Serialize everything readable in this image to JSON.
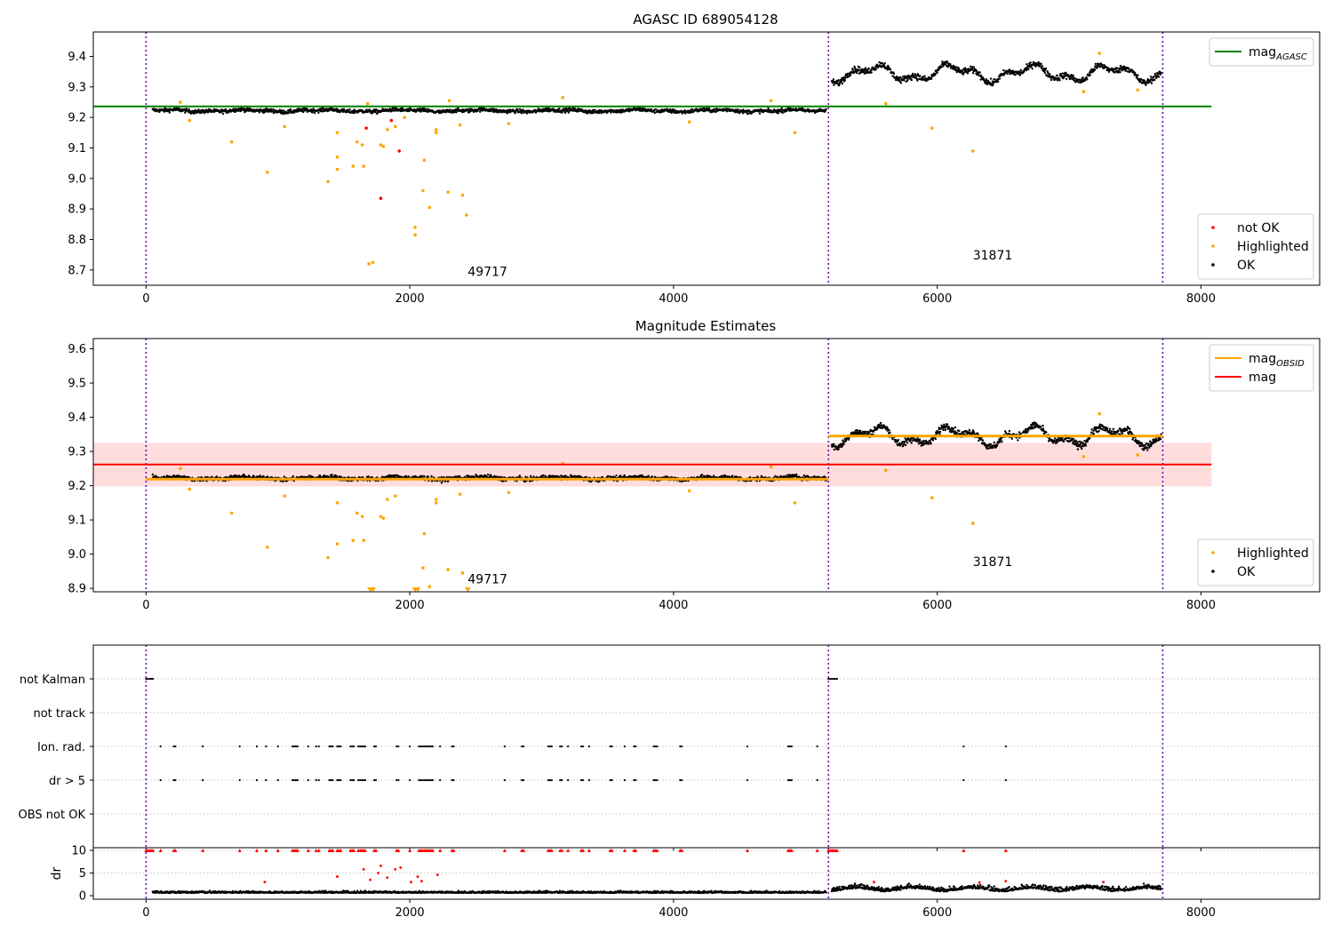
{
  "chart_data": [
    {
      "type": "scatter",
      "title": "AGASC ID 689054128",
      "xlim": [
        -400,
        8900
      ],
      "ylim": [
        8.65,
        9.48
      ],
      "x_ticks": [
        0,
        2000,
        4000,
        6000,
        8000
      ],
      "y_ticks": [
        8.7,
        8.8,
        8.9,
        9.0,
        9.1,
        9.2,
        9.3,
        9.4
      ],
      "vlines": [
        0,
        5175,
        7710
      ],
      "hlines": [
        {
          "name": "mag_AGASC",
          "y": 9.236,
          "x_start": -400,
          "x_end": 8080,
          "color": "#008000"
        }
      ],
      "annotations": [
        {
          "text": "49717",
          "x": 2590,
          "y": 8.68
        },
        {
          "text": "31871",
          "x": 6420,
          "y": 8.735
        }
      ],
      "segments": [
        {
          "x_start": 50,
          "x_end": 5160,
          "y_mean": 9.222,
          "noise": 0.006,
          "wave": 0.004
        },
        {
          "x_start": 5200,
          "x_end": 7700,
          "y_mean": 9.345,
          "noise": 0.01,
          "wave": 0.03
        }
      ],
      "highlighted": [
        [
          650,
          9.12
        ],
        [
          920,
          9.02
        ],
        [
          1050,
          9.17
        ],
        [
          1380,
          8.99
        ],
        [
          1450,
          9.07
        ],
        [
          1450,
          9.03
        ],
        [
          1450,
          9.15
        ],
        [
          1570,
          9.04
        ],
        [
          1600,
          9.12
        ],
        [
          1640,
          9.11
        ],
        [
          1650,
          9.04
        ],
        [
          1690,
          8.72
        ],
        [
          1720,
          8.725
        ],
        [
          1780,
          9.11
        ],
        [
          1800,
          9.105
        ],
        [
          1830,
          9.16
        ],
        [
          1890,
          9.17
        ],
        [
          1960,
          9.2
        ],
        [
          2040,
          8.84
        ],
        [
          2040,
          8.815
        ],
        [
          2100,
          8.96
        ],
        [
          2110,
          9.06
        ],
        [
          2150,
          8.905
        ],
        [
          2200,
          9.15
        ],
        [
          2200,
          9.16
        ],
        [
          2290,
          8.955
        ],
        [
          2380,
          9.175
        ],
        [
          2400,
          8.945
        ],
        [
          2430,
          8.88
        ],
        [
          2750,
          9.18
        ],
        [
          3160,
          9.265
        ],
        [
          4120,
          9.185
        ],
        [
          4920,
          9.15
        ],
        [
          5610,
          9.245
        ],
        [
          5960,
          9.165
        ],
        [
          6270,
          9.09
        ],
        [
          7110,
          9.285
        ],
        [
          7230,
          9.41
        ],
        [
          7520,
          9.29
        ],
        [
          260,
          9.25
        ],
        [
          330,
          9.19
        ],
        [
          1680,
          9.245
        ],
        [
          2300,
          9.255
        ],
        [
          4740,
          9.255
        ]
      ],
      "not_ok": [
        [
          1670,
          9.165
        ],
        [
          1780,
          8.935
        ],
        [
          1920,
          9.09
        ],
        [
          1860,
          9.19
        ]
      ],
      "legends": [
        {
          "position": "upper-right",
          "entries": [
            {
              "label": "mag",
              "sub": "AGASC",
              "kind": "line",
              "color": "#008000"
            }
          ]
        },
        {
          "position": "lower-right",
          "entries": [
            {
              "label": "not OK",
              "kind": "dot",
              "color": "#ff0000"
            },
            {
              "label": "Highlighted",
              "kind": "dot",
              "color": "#ffa500"
            },
            {
              "label": "OK",
              "kind": "dot",
              "color": "#000000"
            }
          ]
        }
      ]
    },
    {
      "type": "scatter",
      "title": "Magnitude Estimates",
      "xlim": [
        -400,
        8900
      ],
      "ylim": [
        8.89,
        9.63
      ],
      "x_ticks": [
        0,
        2000,
        4000,
        6000,
        8000
      ],
      "y_ticks": [
        8.9,
        9.0,
        9.1,
        9.2,
        9.3,
        9.4,
        9.5,
        9.6
      ],
      "vlines": [
        0,
        5175,
        7710
      ],
      "band": {
        "y_low": 9.198,
        "y_high": 9.325,
        "x_start": -400,
        "x_end": 8080,
        "color": "#ffdddd"
      },
      "hlines": [
        {
          "name": "mag",
          "y": 9.262,
          "x_start": -400,
          "x_end": 8080,
          "color": "#ff0000"
        }
      ],
      "obsid_lines": [
        {
          "x_start": 0,
          "x_end": 5175,
          "y": 9.219
        },
        {
          "x_start": 5175,
          "x_end": 7710,
          "y": 9.345
        }
      ],
      "annotations": [
        {
          "text": "49717",
          "x": 2590,
          "y": 8.915
        },
        {
          "text": "31871",
          "x": 6420,
          "y": 8.965
        }
      ],
      "segments": [
        {
          "x_start": 50,
          "x_end": 5160,
          "y_mean": 9.222,
          "noise": 0.006,
          "wave": 0.004
        },
        {
          "x_start": 5200,
          "x_end": 7700,
          "y_mean": 9.345,
          "noise": 0.01,
          "wave": 0.03
        }
      ],
      "highlighted": [
        [
          650,
          9.12
        ],
        [
          920,
          9.02
        ],
        [
          1050,
          9.17
        ],
        [
          1380,
          8.99
        ],
        [
          1450,
          9.03
        ],
        [
          1450,
          9.15
        ],
        [
          1570,
          9.04
        ],
        [
          1600,
          9.12
        ],
        [
          1640,
          9.11
        ],
        [
          1650,
          9.04
        ],
        [
          1780,
          9.11
        ],
        [
          1800,
          9.105
        ],
        [
          1830,
          9.16
        ],
        [
          1890,
          9.17
        ],
        [
          2100,
          8.96
        ],
        [
          2110,
          9.06
        ],
        [
          2150,
          8.905
        ],
        [
          2200,
          9.15
        ],
        [
          2200,
          9.16
        ],
        [
          2290,
          8.955
        ],
        [
          2380,
          9.175
        ],
        [
          2400,
          8.945
        ],
        [
          2750,
          9.18
        ],
        [
          3160,
          9.265
        ],
        [
          4120,
          9.185
        ],
        [
          4920,
          9.15
        ],
        [
          5610,
          9.245
        ],
        [
          5960,
          9.165
        ],
        [
          6270,
          9.09
        ],
        [
          7110,
          9.285
        ],
        [
          7230,
          9.41
        ],
        [
          7520,
          9.29
        ],
        [
          260,
          9.25
        ],
        [
          330,
          9.19
        ],
        [
          4740,
          9.255
        ]
      ],
      "clipped_low": [
        1700,
        1720,
        2040,
        2060,
        2440
      ],
      "legends": [
        {
          "position": "upper-right",
          "entries": [
            {
              "label": "mag",
              "sub": "OBSID",
              "kind": "line",
              "color": "#ffa500"
            },
            {
              "label": "mag",
              "sub": "",
              "kind": "line",
              "color": "#ff0000"
            }
          ]
        },
        {
          "position": "lower-right",
          "entries": [
            {
              "label": "Highlighted",
              "kind": "dot",
              "color": "#ffa500"
            },
            {
              "label": "OK",
              "kind": "dot",
              "color": "#000000"
            }
          ]
        }
      ]
    },
    {
      "type": "scatter",
      "title": "",
      "xlim": [
        -400,
        8900
      ],
      "categories": [
        "not Kalman",
        "not track",
        "Ion. rad.",
        "dr > 5",
        "OBS not OK"
      ],
      "vlines": [
        0,
        5175,
        7710
      ],
      "flag_runs": {
        "not Kalman": [
          [
            0,
            60
          ],
          [
            5175,
            5250
          ]
        ],
        "not track": [],
        "Ion. rad.": [
          [
            110,
            110
          ],
          [
            210,
            230
          ],
          [
            430,
            430
          ],
          [
            710,
            720
          ],
          [
            840,
            850
          ],
          [
            910,
            920
          ],
          [
            1000,
            1010
          ],
          [
            1110,
            1150
          ],
          [
            1230,
            1240
          ],
          [
            1290,
            1300
          ],
          [
            1310,
            1320
          ],
          [
            1390,
            1420
          ],
          [
            1450,
            1480
          ],
          [
            1550,
            1580
          ],
          [
            1610,
            1670
          ],
          [
            1730,
            1750
          ],
          [
            1900,
            1920
          ],
          [
            2000,
            2010
          ],
          [
            2070,
            2180
          ],
          [
            2230,
            2240
          ],
          [
            2320,
            2340
          ],
          [
            2720,
            2730
          ],
          [
            2850,
            2870
          ],
          [
            3050,
            3080
          ],
          [
            3140,
            3160
          ],
          [
            3200,
            3210
          ],
          [
            3300,
            3320
          ],
          [
            3360,
            3370
          ],
          [
            3520,
            3540
          ],
          [
            3630,
            3640
          ],
          [
            3700,
            3720
          ],
          [
            3850,
            3880
          ],
          [
            4050,
            4070
          ],
          [
            4560,
            4560
          ],
          [
            4870,
            4900
          ],
          [
            5090,
            5100
          ],
          [
            6200,
            6200
          ],
          [
            6520,
            6520
          ]
        ],
        "dr > 5": [
          [
            110,
            110
          ],
          [
            210,
            230
          ],
          [
            430,
            430
          ],
          [
            710,
            720
          ],
          [
            840,
            850
          ],
          [
            910,
            920
          ],
          [
            1000,
            1010
          ],
          [
            1110,
            1150
          ],
          [
            1230,
            1240
          ],
          [
            1290,
            1300
          ],
          [
            1310,
            1320
          ],
          [
            1390,
            1420
          ],
          [
            1450,
            1480
          ],
          [
            1550,
            1580
          ],
          [
            1610,
            1670
          ],
          [
            1730,
            1750
          ],
          [
            1900,
            1920
          ],
          [
            2000,
            2010
          ],
          [
            2070,
            2180
          ],
          [
            2230,
            2240
          ],
          [
            2320,
            2340
          ],
          [
            2720,
            2730
          ],
          [
            2850,
            2870
          ],
          [
            3050,
            3080
          ],
          [
            3140,
            3160
          ],
          [
            3200,
            3210
          ],
          [
            3300,
            3320
          ],
          [
            3360,
            3370
          ],
          [
            3520,
            3540
          ],
          [
            3630,
            3640
          ],
          [
            3700,
            3720
          ],
          [
            3850,
            3880
          ],
          [
            4050,
            4070
          ],
          [
            4560,
            4560
          ],
          [
            4870,
            4900
          ],
          [
            5090,
            5100
          ],
          [
            6200,
            6200
          ],
          [
            6520,
            6520
          ]
        ],
        "OBS not OK": []
      }
    },
    {
      "type": "scatter",
      "title": "",
      "ylabel": "dr",
      "xlim": [
        -400,
        8900
      ],
      "ylim": [
        -0.5,
        10.5
      ],
      "x_ticks": [
        0,
        2000,
        4000,
        6000,
        8000
      ],
      "x_tick_labels": [
        "0",
        "2000",
        "4000",
        "6000",
        "8000"
      ],
      "y_ticks": [
        0,
        5,
        10
      ],
      "y_tick_labels": [
        "0",
        "5",
        "10"
      ],
      "vlines": [
        0,
        5175,
        7710
      ],
      "segments": [
        {
          "x_start": 50,
          "x_end": 5160,
          "y_mean": 0.7,
          "noise": 0.25
        },
        {
          "x_start": 5200,
          "x_end": 7700,
          "y_mean": 1.5,
          "noise": 0.6
        }
      ],
      "capped_at": 10,
      "outliers": [
        [
          900,
          3.0
        ],
        [
          1450,
          4.2
        ],
        [
          1650,
          5.8
        ],
        [
          1700,
          3.5
        ],
        [
          1760,
          5.0
        ],
        [
          1780,
          6.6
        ],
        [
          1830,
          4.0
        ],
        [
          1890,
          5.8
        ],
        [
          1930,
          6.2
        ],
        [
          2010,
          3.0
        ],
        [
          2060,
          4.2
        ],
        [
          2090,
          3.2
        ],
        [
          2210,
          4.6
        ],
        [
          5520,
          3.0
        ],
        [
          6320,
          2.9
        ],
        [
          6520,
          3.2
        ],
        [
          7260,
          3.0
        ]
      ]
    }
  ]
}
